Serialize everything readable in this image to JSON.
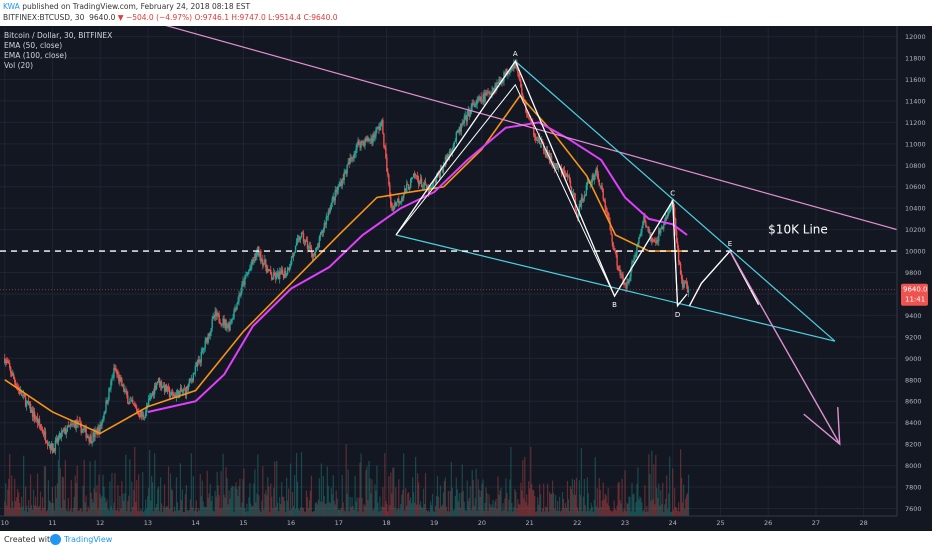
{
  "header": {
    "user": "KWA",
    "published_text": "published on TradingView.com, February 24, 2018 08:18 EST",
    "symbol": "BITFINEX:BTCUSD, 30",
    "last": "9640.0",
    "change": "−504.0 (−4.97%)",
    "ohlc": "O:9746.1 H:9747.0 L:9514.4 C:9640.0"
  },
  "legend": {
    "title": "Bitcoin / Dollar, 30, BITFINEX",
    "ema50": "EMA (50, close)",
    "ema100": "EMA (100, close)",
    "vol": "Vol (20)"
  },
  "footer": {
    "created": "Created with",
    "brand": "TradingView"
  },
  "colors": {
    "background": "#131722",
    "up": "#26a69a",
    "down": "#ef5350",
    "ema50": "#f7931a",
    "ema100": "#e040fb",
    "trend_line": "#e090d0",
    "channel": "#4dd0e1",
    "pattern": "#ffffff",
    "price_badge": "#ef5350"
  },
  "chart_data": {
    "type": "candlestick",
    "symbol": "BTCUSD",
    "interval": "30",
    "x_ticks": [
      "10",
      "11",
      "12",
      "13",
      "14",
      "15",
      "16",
      "17",
      "18",
      "19",
      "20",
      "21",
      "22",
      "23",
      "24",
      "25",
      "26",
      "27",
      "28"
    ],
    "y_ticks": [
      7600,
      7800,
      8000,
      8200,
      8400,
      8600,
      8800,
      9000,
      9200,
      9400,
      9600,
      9800,
      10000,
      10200,
      10400,
      10600,
      10800,
      11000,
      11200,
      11400,
      11600,
      11800,
      12000
    ],
    "ylim": [
      7530,
      12080
    ],
    "xlim": [
      9.9,
      28.7
    ],
    "last_price": "9640.0",
    "last_price_value": 9640,
    "countdown": "11:41",
    "price_path": [
      [
        10.0,
        9000
      ],
      [
        10.3,
        8700
      ],
      [
        10.7,
        8400
      ],
      [
        11.0,
        8150
      ],
      [
        11.2,
        8300
      ],
      [
        11.5,
        8400
      ],
      [
        11.8,
        8250
      ],
      [
        12.0,
        8350
      ],
      [
        12.3,
        8900
      ],
      [
        12.6,
        8600
      ],
      [
        12.9,
        8450
      ],
      [
        13.2,
        8800
      ],
      [
        13.5,
        8650
      ],
      [
        13.8,
        8700
      ],
      [
        14.1,
        9000
      ],
      [
        14.4,
        9400
      ],
      [
        14.7,
        9300
      ],
      [
        15.0,
        9700
      ],
      [
        15.3,
        10000
      ],
      [
        15.6,
        9750
      ],
      [
        15.9,
        9800
      ],
      [
        16.2,
        10150
      ],
      [
        16.5,
        9950
      ],
      [
        16.8,
        10400
      ],
      [
        17.1,
        10700
      ],
      [
        17.4,
        11000
      ],
      [
        17.7,
        11050
      ],
      [
        17.9,
        11200
      ],
      [
        18.1,
        10400
      ],
      [
        18.3,
        10500
      ],
      [
        18.6,
        10700
      ],
      [
        18.9,
        10550
      ],
      [
        19.2,
        10800
      ],
      [
        19.5,
        11100
      ],
      [
        19.8,
        11350
      ],
      [
        20.1,
        11450
      ],
      [
        20.4,
        11600
      ],
      [
        20.7,
        11770
      ],
      [
        20.9,
        11350
      ],
      [
        21.1,
        11100
      ],
      [
        21.3,
        10950
      ],
      [
        21.5,
        10800
      ],
      [
        21.8,
        10700
      ],
      [
        22.0,
        10350
      ],
      [
        22.2,
        10600
      ],
      [
        22.4,
        10750
      ],
      [
        22.6,
        10400
      ],
      [
        22.8,
        9950
      ],
      [
        23.0,
        9650
      ],
      [
        23.2,
        9950
      ],
      [
        23.4,
        10300
      ],
      [
        23.6,
        10050
      ],
      [
        23.8,
        10250
      ],
      [
        24.0,
        10450
      ],
      [
        24.1,
        10000
      ],
      [
        24.2,
        9700
      ],
      [
        24.35,
        9640
      ]
    ],
    "series": [
      {
        "name": "EMA (50, close)",
        "points": [
          [
            10.0,
            8800
          ],
          [
            11.0,
            8500
          ],
          [
            12.0,
            8300
          ],
          [
            13.0,
            8550
          ],
          [
            14.0,
            8700
          ],
          [
            15.0,
            9250
          ],
          [
            16.0,
            9700
          ],
          [
            17.0,
            10150
          ],
          [
            17.8,
            10500
          ],
          [
            18.5,
            10550
          ],
          [
            19.2,
            10600
          ],
          [
            20.0,
            10950
          ],
          [
            20.8,
            11450
          ],
          [
            21.5,
            11100
          ],
          [
            22.2,
            10700
          ],
          [
            22.8,
            10150
          ],
          [
            23.5,
            10000
          ],
          [
            24.3,
            10000
          ]
        ]
      },
      {
        "name": "EMA (100, close)",
        "points": [
          [
            13.0,
            8500
          ],
          [
            14.0,
            8600
          ],
          [
            14.6,
            8850
          ],
          [
            15.2,
            9300
          ],
          [
            16.0,
            9650
          ],
          [
            16.8,
            9850
          ],
          [
            17.5,
            10150
          ],
          [
            18.3,
            10400
          ],
          [
            19.0,
            10550
          ],
          [
            19.7,
            10850
          ],
          [
            20.5,
            11150
          ],
          [
            21.2,
            11200
          ],
          [
            21.8,
            11050
          ],
          [
            22.5,
            10850
          ],
          [
            23.0,
            10500
          ],
          [
            23.5,
            10300
          ],
          [
            24.0,
            10250
          ],
          [
            24.3,
            10150
          ]
        ]
      }
    ],
    "annotations": {
      "labels": [
        {
          "text": "A",
          "x": 20.7,
          "y": 11770
        },
        {
          "text": "B",
          "x": 22.78,
          "y": 9580
        },
        {
          "text": "C",
          "x": 24.0,
          "y": 10470
        },
        {
          "text": "D",
          "x": 24.1,
          "y": 9490
        },
        {
          "text": "E",
          "x": 25.2,
          "y": 10000
        },
        {
          "text": "$10K Line",
          "x": 26.0,
          "y": 10200
        }
      ],
      "horizontal_line": 10000,
      "pink_trendline": [
        [
          13.0,
          12150
        ],
        [
          28.7,
          10200
        ]
      ],
      "channel_upper": [
        [
          20.7,
          11770
        ],
        [
          27.4,
          9160
        ]
      ],
      "channel_lower": [
        [
          18.2,
          10150
        ],
        [
          27.4,
          9160
        ]
      ],
      "zigzag": [
        [
          18.2,
          10150
        ],
        [
          20.7,
          11770
        ],
        [
          22.78,
          9580
        ],
        [
          24.0,
          10470
        ],
        [
          24.1,
          9490
        ],
        [
          24.3,
          9600
        ]
      ],
      "inner_pattern": [
        [
          18.2,
          10150
        ],
        [
          20.7,
          11550
        ],
        [
          22.78,
          9580
        ],
        [
          24.0,
          10470
        ],
        [
          24.1,
          9490
        ]
      ],
      "projection": [
        [
          24.35,
          9490
        ],
        [
          24.6,
          9700
        ],
        [
          25.2,
          10000
        ],
        [
          25.8,
          9500
        ],
        [
          27.5,
          8200
        ]
      ]
    }
  }
}
